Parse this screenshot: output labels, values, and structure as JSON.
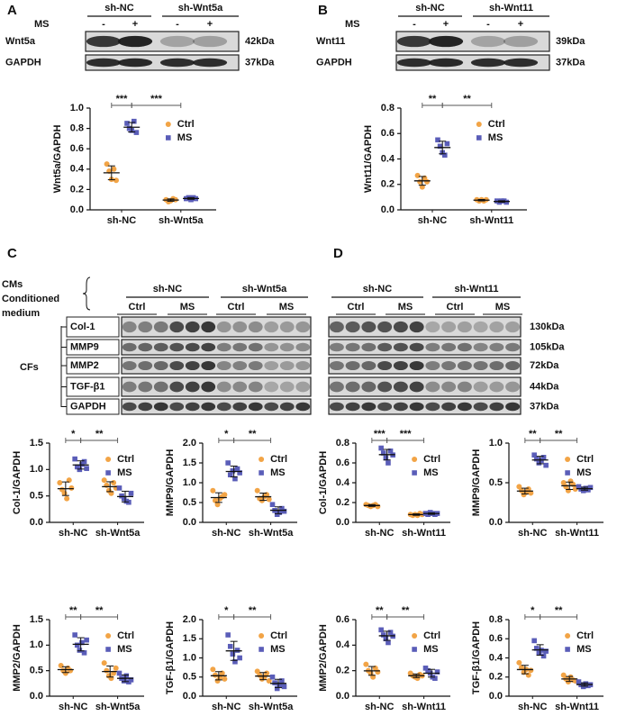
{
  "figure": {
    "A": {
      "letter": "A",
      "groups": [
        "sh-NC",
        "sh-Wnt5a"
      ],
      "treatment": "MS",
      "signs": [
        "-",
        "+",
        "-",
        "+"
      ],
      "rows": [
        {
          "protein": "Wnt5a",
          "size": "42kDa"
        },
        {
          "protein": "GAPDH",
          "size": "37kDa"
        }
      ]
    },
    "B": {
      "letter": "B",
      "groups": [
        "sh-NC",
        "sh-Wnt11"
      ],
      "treatment": "MS",
      "signs": [
        "-",
        "+",
        "-",
        "+"
      ],
      "rows": [
        {
          "protein": "Wnt11",
          "size": "39kDa"
        },
        {
          "protein": "GAPDH",
          "size": "37kDa"
        }
      ]
    },
    "C": {
      "letter": "C",
      "header": [
        "CMs",
        "Conditioned",
        "medium"
      ],
      "groups": [
        "sh-NC",
        "sh-Wnt5a"
      ],
      "conditions": [
        "Ctrl",
        "MS",
        "Ctrl",
        "MS"
      ],
      "cells": "CFs",
      "proteins": [
        "Col-1",
        "MMP9",
        "MMP2",
        "TGF-β1",
        "GAPDH"
      ]
    },
    "D": {
      "letter": "D",
      "groups": [
        "sh-NC",
        "sh-Wnt11"
      ],
      "conditions": [
        "Ctrl",
        "MS",
        "Ctrl",
        "MS"
      ],
      "sizes": [
        "130kDa",
        "105kDa",
        "72kDa",
        "44kDa",
        "37kDa"
      ]
    }
  },
  "chart_data": [
    {
      "type": "scatter",
      "ylabel": "Wnt5a/GAPDH",
      "categories": [
        "sh-NC",
        "sh-Wnt5a"
      ],
      "significance": [
        "***",
        "***"
      ],
      "ylim": [
        0,
        1.0
      ],
      "yticks": [
        {
          "value": 0,
          "label": "0.0"
        },
        0.2,
        0.4,
        0.6,
        0.8,
        {
          "value": 1,
          "label": "1.0"
        }
      ],
      "series": [
        {
          "name": "Ctrl",
          "color": "#f2a446",
          "values": [
            [
              0.45,
              0.38,
              0.3,
              0.4,
              0.29
            ],
            [
              0.1,
              0.08,
              0.09,
              0.11,
              0.1
            ]
          ]
        },
        {
          "name": "MS",
          "color": "#5a5db8",
          "values": [
            [
              0.85,
              0.8,
              0.78,
              0.87,
              0.76
            ],
            [
              0.11,
              0.12,
              0.1,
              0.12,
              0.11
            ]
          ]
        }
      ]
    },
    {
      "type": "scatter",
      "ylabel": "Wnt11/GAPDH",
      "categories": [
        "sh-NC",
        "sh-Wnt11"
      ],
      "significance": [
        "**",
        "**"
      ],
      "ylim": [
        0,
        0.8
      ],
      "yticks": [
        {
          "value": 0,
          "label": "0.0"
        },
        0.2,
        0.4,
        0.6,
        0.8
      ],
      "series": [
        {
          "name": "Ctrl",
          "color": "#f2a446",
          "values": [
            [
              0.27,
              0.22,
              0.18,
              0.25,
              0.22
            ],
            [
              0.08,
              0.07,
              0.08,
              0.07,
              0.08
            ]
          ]
        },
        {
          "name": "MS",
          "color": "#5a5db8",
          "values": [
            [
              0.55,
              0.5,
              0.45,
              0.43,
              0.52
            ],
            [
              0.07,
              0.06,
              0.07,
              0.07,
              0.06
            ]
          ]
        }
      ]
    },
    {
      "type": "scatter",
      "ylabel": "Col-1/GAPDH",
      "categories": [
        "sh-NC",
        "sh-Wnt5a"
      ],
      "significance": [
        "*",
        "**"
      ],
      "ylim": [
        0,
        1.5
      ],
      "yticks": [
        {
          "value": 0,
          "label": "0.0"
        },
        0.5,
        {
          "value": 1,
          "label": "1.0"
        },
        1.5
      ],
      "series": [
        {
          "name": "Ctrl",
          "color": "#f2a446",
          "values": [
            [
              0.75,
              0.62,
              0.55,
              0.45,
              0.8,
              0.65
            ],
            [
              0.8,
              0.7,
              0.6,
              0.55,
              0.75,
              0.65
            ]
          ]
        },
        {
          "name": "MS",
          "color": "#5a5db8",
          "values": [
            [
              1.2,
              1.05,
              1.0,
              1.1,
              1.15,
              1.02
            ],
            [
              0.65,
              0.5,
              0.45,
              0.4,
              0.38,
              0.55
            ]
          ]
        }
      ]
    },
    {
      "type": "scatter",
      "ylabel": "MMP9/GAPDH",
      "categories": [
        "sh-NC",
        "sh-Wnt5a"
      ],
      "significance": [
        "*",
        "**"
      ],
      "ylim": [
        0,
        2.0
      ],
      "yticks": [
        {
          "value": 0,
          "label": "0.0"
        },
        0.5,
        {
          "value": 1,
          "label": "1.0"
        },
        1.5,
        {
          "value": 2,
          "label": "2.0"
        }
      ],
      "series": [
        {
          "name": "Ctrl",
          "color": "#f2a446",
          "values": [
            [
              0.8,
              0.55,
              0.45,
              0.6,
              0.65,
              0.7
            ],
            [
              0.8,
              0.6,
              0.55,
              0.65,
              0.7,
              0.58
            ]
          ]
        },
        {
          "name": "MS",
          "color": "#5a5db8",
          "values": [
            [
              1.5,
              1.2,
              1.3,
              1.1,
              1.35,
              1.25
            ],
            [
              0.45,
              0.3,
              0.2,
              0.25,
              0.35,
              0.28
            ]
          ]
        }
      ]
    },
    {
      "type": "scatter",
      "ylabel": "MMP2/GAPDH",
      "categories": [
        "sh-NC",
        "sh-Wnt5a"
      ],
      "significance": [
        "**",
        "**"
      ],
      "ylim": [
        0,
        1.5
      ],
      "yticks": [
        {
          "value": 0,
          "label": "0.0"
        },
        0.5,
        {
          "value": 1,
          "label": "1.0"
        },
        1.5
      ],
      "series": [
        {
          "name": "Ctrl",
          "color": "#f2a446",
          "values": [
            [
              0.6,
              0.5,
              0.45,
              0.55,
              0.5
            ],
            [
              0.65,
              0.5,
              0.4,
              0.35,
              0.45,
              0.55
            ]
          ]
        },
        {
          "name": "MS",
          "color": "#5a5db8",
          "values": [
            [
              1.2,
              1.0,
              0.9,
              1.05,
              0.85,
              1.1
            ],
            [
              0.45,
              0.35,
              0.3,
              0.4,
              0.28,
              0.32
            ]
          ]
        }
      ]
    },
    {
      "type": "scatter",
      "ylabel": "TGF-β1/GAPDH",
      "categories": [
        "sh-NC",
        "sh-Wnt5a"
      ],
      "significance": [
        "*",
        "**"
      ],
      "ylim": [
        0,
        2.0
      ],
      "yticks": [
        {
          "value": 0,
          "label": "0.0"
        },
        0.5,
        {
          "value": 1,
          "label": "1.0"
        },
        1.5,
        {
          "value": 2,
          "label": "2.0"
        }
      ],
      "series": [
        {
          "name": "Ctrl",
          "color": "#f2a446",
          "values": [
            [
              0.7,
              0.55,
              0.4,
              0.5,
              0.6,
              0.45
            ],
            [
              0.65,
              0.55,
              0.45,
              0.5,
              0.6,
              0.4
            ]
          ]
        },
        {
          "name": "MS",
          "color": "#5a5db8",
          "values": [
            [
              1.6,
              1.3,
              1.1,
              0.9,
              1.2,
              1.0
            ],
            [
              0.5,
              0.35,
              0.2,
              0.3,
              0.4,
              0.25
            ]
          ]
        }
      ]
    },
    {
      "type": "scatter",
      "ylabel": "Col-1/GAPDH",
      "categories": [
        "sh-NC",
        "sh-Wnt11"
      ],
      "significance": [
        "***",
        "***"
      ],
      "ylim": [
        0,
        0.8
      ],
      "yticks": [
        {
          "value": 0,
          "label": "0.0"
        },
        0.2,
        0.4,
        0.6,
        0.8
      ],
      "series": [
        {
          "name": "Ctrl",
          "color": "#f2a446",
          "values": [
            [
              0.18,
              0.17,
              0.16,
              0.17,
              0.18,
              0.16
            ],
            [
              0.08,
              0.07,
              0.08,
              0.07,
              0.09,
              0.08
            ]
          ]
        },
        {
          "name": "MS",
          "color": "#5a5db8",
          "values": [
            [
              0.75,
              0.7,
              0.65,
              0.6,
              0.72,
              0.68
            ],
            [
              0.09,
              0.08,
              0.1,
              0.09,
              0.08,
              0.09
            ]
          ]
        }
      ]
    },
    {
      "type": "scatter",
      "ylabel": "MMP9/GAPDH",
      "categories": [
        "sh-NC",
        "sh-Wnt11"
      ],
      "significance": [
        "**",
        "**"
      ],
      "ylim": [
        0,
        1.0
      ],
      "yticks": [
        {
          "value": 0,
          "label": "0.0"
        },
        0.5,
        {
          "value": 1,
          "label": "1.0"
        }
      ],
      "series": [
        {
          "name": "Ctrl",
          "color": "#f2a446",
          "values": [
            [
              0.45,
              0.4,
              0.35,
              0.38,
              0.42,
              0.37
            ],
            [
              0.5,
              0.45,
              0.4,
              0.52,
              0.48,
              0.42
            ]
          ]
        },
        {
          "name": "MS",
          "color": "#5a5db8",
          "values": [
            [
              0.85,
              0.8,
              0.75,
              0.78,
              0.82,
              0.72
            ],
            [
              0.45,
              0.42,
              0.4,
              0.43,
              0.41,
              0.44
            ]
          ]
        }
      ]
    },
    {
      "type": "scatter",
      "ylabel": "MMP2/GAPDH",
      "categories": [
        "sh-NC",
        "sh-Wnt11"
      ],
      "significance": [
        "**",
        "**"
      ],
      "ylim": [
        0,
        0.6
      ],
      "yticks": [
        {
          "value": 0,
          "label": "0.0"
        },
        0.2,
        0.4,
        0.6
      ],
      "series": [
        {
          "name": "Ctrl",
          "color": "#f2a446",
          "values": [
            [
              0.25,
              0.2,
              0.18,
              0.15,
              0.22,
              0.19
            ],
            [
              0.18,
              0.16,
              0.15,
              0.14,
              0.17,
              0.16
            ]
          ]
        },
        {
          "name": "MS",
          "color": "#5a5db8",
          "values": [
            [
              0.52,
              0.48,
              0.45,
              0.42,
              0.5,
              0.47
            ],
            [
              0.22,
              0.2,
              0.18,
              0.15,
              0.14,
              0.19
            ]
          ]
        }
      ]
    },
    {
      "type": "scatter",
      "ylabel": "TGF-β1/GAPDH",
      "categories": [
        "sh-NC",
        "sh-Wnt11"
      ],
      "significance": [
        "*",
        "**"
      ],
      "ylim": [
        0,
        0.8
      ],
      "yticks": [
        {
          "value": 0,
          "label": "0.0"
        },
        0.2,
        0.4,
        0.6,
        0.8
      ],
      "series": [
        {
          "name": "Ctrl",
          "color": "#f2a446",
          "values": [
            [
              0.35,
              0.3,
              0.25,
              0.28,
              0.22,
              0.27
            ],
            [
              0.22,
              0.18,
              0.15,
              0.2,
              0.17,
              0.16
            ]
          ]
        },
        {
          "name": "MS",
          "color": "#5a5db8",
          "values": [
            [
              0.58,
              0.5,
              0.45,
              0.48,
              0.42,
              0.47
            ],
            [
              0.15,
              0.12,
              0.1,
              0.13,
              0.11,
              0.12
            ]
          ]
        }
      ]
    }
  ]
}
